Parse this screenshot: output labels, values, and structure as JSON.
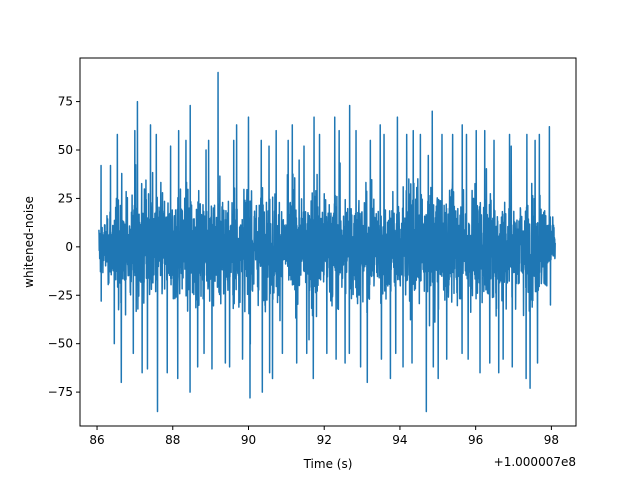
{
  "chart_data": {
    "type": "line",
    "title": "",
    "xlabel": "Time (s)",
    "ylabel": "whitened-noise",
    "x_offset_label": "+1.000007e8",
    "xlim": [
      85.55,
      98.65
    ],
    "ylim": [
      -92.5,
      97.5
    ],
    "grid": false,
    "legend": "none",
    "color": "#1f77b4",
    "x_ticks": [
      {
        "value": 86,
        "label": "86"
      },
      {
        "value": 88,
        "label": "88"
      },
      {
        "value": 90,
        "label": "90"
      },
      {
        "value": 92,
        "label": "92"
      },
      {
        "value": 94,
        "label": "94"
      },
      {
        "value": 96,
        "label": "96"
      },
      {
        "value": 98,
        "label": "98"
      }
    ],
    "y_ticks": [
      {
        "value": -75,
        "label": "−75"
      },
      {
        "value": -50,
        "label": "−50"
      },
      {
        "value": -25,
        "label": "−25"
      },
      {
        "value": 0,
        "label": "0"
      },
      {
        "value": 25,
        "label": "25"
      },
      {
        "value": 50,
        "label": "50"
      },
      {
        "value": 75,
        "label": "75"
      }
    ],
    "series": [
      {
        "x_start": 86.05,
        "x_end": 98.1,
        "envelope_max": [
          42,
          42,
          58,
          60,
          75,
          63,
          58,
          52,
          60,
          55,
          73,
          50,
          55,
          90,
          55,
          63,
          67,
          55,
          52,
          60,
          55,
          63,
          52,
          67,
          58,
          67,
          60,
          73,
          60,
          55,
          63,
          58,
          67,
          58,
          60,
          58,
          70,
          58,
          58,
          63,
          58,
          60,
          60,
          55,
          58,
          52,
          58,
          55,
          58,
          62
        ],
        "envelope_min": [
          -28,
          -50,
          -70,
          -55,
          -65,
          -63,
          -85,
          -65,
          -68,
          -75,
          -62,
          -55,
          -63,
          -60,
          -62,
          -58,
          -78,
          -75,
          -65,
          -68,
          -55,
          -60,
          -55,
          -68,
          -55,
          -58,
          -60,
          -55,
          -62,
          -70,
          -58,
          -68,
          -55,
          -62,
          -60,
          -85,
          -62,
          -68,
          -58,
          -55,
          -58,
          -65,
          -60,
          -65,
          -58,
          -62,
          -68,
          -73,
          -60,
          -30
        ]
      }
    ]
  }
}
